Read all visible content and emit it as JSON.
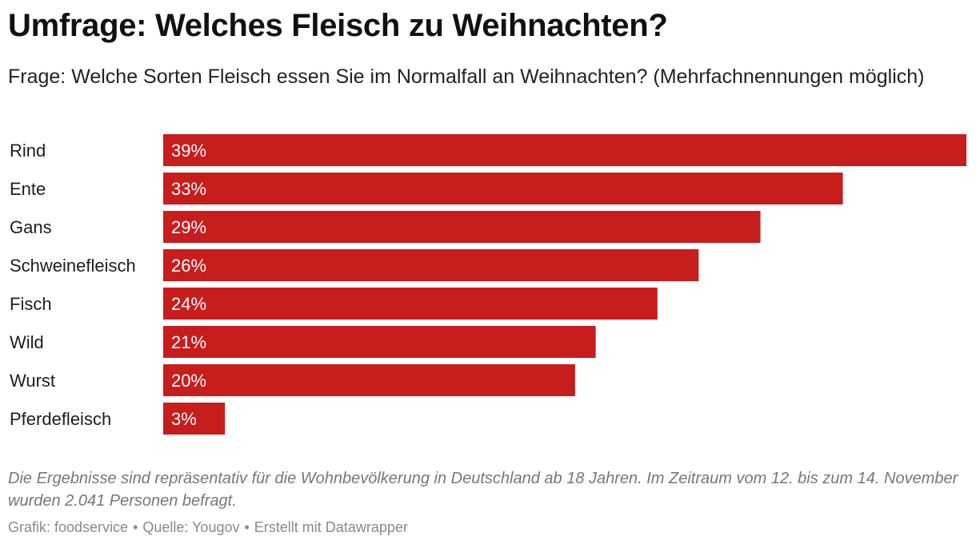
{
  "header": {
    "title": "Umfrage: Welches Fleisch zu Weihnachten?",
    "subtitle": "Frage: Welche Sorten Fleisch essen Sie im Normalfall an Weihnachten? (Mehrfachnennungen möglich)"
  },
  "footer": {
    "notes": "Die Ergebnisse sind repräsentativ für die Wohnbevölkerung in Deutschland ab 18 Jahren. Im Zeitraum vom 12. bis zum 14. November wurden 2.041 Personen befragt.",
    "credit": "Grafik: foodservice",
    "source": "Quelle: Yougov",
    "made_with": "Erstellt mit Datawrapper",
    "separator": "•"
  },
  "colors": {
    "bar": "#c81d1d",
    "bar_label": "#ffffff",
    "category_label": "#1d1d1d"
  },
  "chart_data": {
    "type": "bar",
    "orientation": "horizontal",
    "categories": [
      "Rind",
      "Ente",
      "Gans",
      "Schweinefleisch",
      "Fisch",
      "Wild",
      "Wurst",
      "Pferdefleisch"
    ],
    "values": [
      39,
      33,
      29,
      26,
      24,
      21,
      20,
      3
    ],
    "value_labels": [
      "39%",
      "33%",
      "29%",
      "26%",
      "24%",
      "21%",
      "20%",
      "3%"
    ],
    "unit": "%",
    "xlim": [
      0,
      39
    ],
    "grid": false,
    "legend": "none"
  }
}
